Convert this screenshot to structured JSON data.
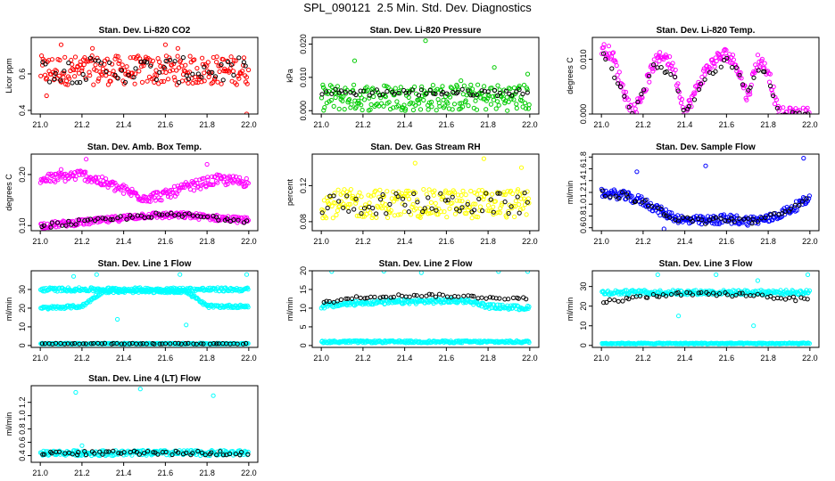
{
  "title": "SPL_090121  2.5 Min. Std. Dev. Diagnostics",
  "colors": {
    "red": "#ff0000",
    "green": "#00cc00",
    "magenta": "#ff00ff",
    "yellow": "#ffff00",
    "blue": "#0000ff",
    "cyan": "#00ffff",
    "black": "#000000"
  },
  "chart_data": [
    {
      "type": "scatter",
      "title": "Stan. Dev. Li-820 CO2",
      "ylabel": "Licor ppm",
      "xlim": [
        21.0,
        22.0
      ],
      "xticks": [
        21.0,
        21.2,
        21.4,
        21.6,
        21.8,
        22.0
      ],
      "ylim": [
        0.38,
        0.8
      ],
      "yticks": [
        "0.4",
        "0.6"
      ],
      "ytick_values": [
        0.4,
        0.6
      ],
      "color": "red",
      "series": [
        {
          "name": "main",
          "shape": "band",
          "trend_x": [
            21.0,
            21.5,
            22.0
          ],
          "trend_y": [
            0.62,
            0.62,
            0.62
          ],
          "spread": 0.08
        },
        {
          "name": "black",
          "shape": "band",
          "trend_x": [
            21.0,
            22.0
          ],
          "trend_y": [
            0.62,
            0.62
          ],
          "spread": 0.07
        }
      ],
      "outliers": [
        [
          21.1,
          0.76
        ],
        [
          21.25,
          0.74
        ],
        [
          21.6,
          0.76
        ],
        [
          21.66,
          0.74
        ],
        [
          21.99,
          0.38
        ],
        [
          21.03,
          0.48
        ]
      ]
    },
    {
      "type": "scatter",
      "title": "Stan. Dev. Li-820 Pressure",
      "ylabel": "kPa",
      "xlim": [
        21.0,
        22.0
      ],
      "xticks": [
        21.0,
        21.2,
        21.4,
        21.6,
        21.8,
        22.0
      ],
      "ylim": [
        -0.001,
        0.022
      ],
      "yticks": [
        "0.000",
        "0.010",
        "0.020"
      ],
      "ytick_values": [
        0.0,
        0.01,
        0.02
      ],
      "color": "green",
      "series": [
        {
          "name": "main",
          "shape": "band",
          "trend_x": [
            21.0,
            22.0
          ],
          "trend_y": [
            0.004,
            0.004
          ],
          "spread": 0.004
        },
        {
          "name": "black",
          "shape": "band",
          "trend_x": [
            21.0,
            22.0
          ],
          "trend_y": [
            0.0055,
            0.0055
          ],
          "spread": 0.001
        }
      ],
      "outliers": [
        [
          21.16,
          0.015
        ],
        [
          21.5,
          0.021
        ],
        [
          21.67,
          0.009
        ],
        [
          21.83,
          0.013
        ],
        [
          21.99,
          0.011
        ],
        [
          21.01,
          0.007
        ]
      ]
    },
    {
      "type": "scatter",
      "title": "Stan. Dev. Li-820 Temp.",
      "ylabel": "degrees C",
      "xlim": [
        21.0,
        22.0
      ],
      "xticks": [
        21.0,
        21.2,
        21.4,
        21.6,
        21.8,
        22.0
      ],
      "ylim": [
        0.0,
        0.014
      ],
      "yticks": [
        "0.000",
        "0.010"
      ],
      "ytick_values": [
        0.0,
        0.01
      ],
      "color": "magenta",
      "series": [
        {
          "name": "main",
          "shape": "band",
          "trend_x": [
            21.0,
            21.05,
            21.1,
            21.15,
            21.2,
            21.25,
            21.3,
            21.35,
            21.4,
            21.45,
            21.5,
            21.55,
            21.6,
            21.65,
            21.7,
            21.75,
            21.8,
            21.85,
            21.9,
            22.0
          ],
          "trend_y": [
            0.012,
            0.011,
            0.005,
            0.0,
            0.004,
            0.009,
            0.011,
            0.008,
            0.0,
            0.004,
            0.008,
            0.01,
            0.011,
            0.009,
            0.003,
            0.01,
            0.008,
            0.0,
            0.0,
            0.0
          ],
          "spread": 0.0012
        },
        {
          "name": "black",
          "shape": "band",
          "trend_x": [
            21.0,
            21.05,
            21.1,
            21.15,
            21.2,
            21.25,
            21.3,
            21.35,
            21.4,
            21.45,
            21.5,
            21.55,
            21.6,
            21.65,
            21.7,
            21.75,
            21.8,
            21.85,
            21.9,
            22.0
          ],
          "trend_y": [
            0.012,
            0.008,
            0.004,
            0.0,
            0.004,
            0.009,
            0.008,
            0.007,
            0.0,
            0.003,
            0.007,
            0.008,
            0.01,
            0.008,
            0.004,
            0.008,
            0.007,
            0.0,
            0.0,
            0.0
          ],
          "spread": 0.0004
        }
      ],
      "outliers": []
    },
    {
      "type": "scatter",
      "title": "Stan. Dev. Amb. Box Temp.",
      "ylabel": "degrees C",
      "xlim": [
        21.0,
        22.0
      ],
      "xticks": [
        21.0,
        21.2,
        21.4,
        21.6,
        21.8,
        22.0
      ],
      "ylim": [
        0.09,
        0.24
      ],
      "yticks": [
        "0.10",
        "0.20"
      ],
      "ytick_values": [
        0.1,
        0.2
      ],
      "color": "magenta",
      "series": [
        {
          "name": "upper",
          "shape": "band",
          "trend_x": [
            21.0,
            21.2,
            21.4,
            21.5,
            21.6,
            21.7,
            21.85,
            22.0
          ],
          "trend_y": [
            0.19,
            0.2,
            0.17,
            0.155,
            0.16,
            0.175,
            0.19,
            0.185
          ],
          "spread": 0.01
        },
        {
          "name": "lower",
          "shape": "band",
          "trend_x": [
            21.0,
            21.3,
            21.5,
            21.7,
            22.0
          ],
          "trend_y": [
            0.1,
            0.11,
            0.12,
            0.12,
            0.11
          ],
          "spread": 0.006
        },
        {
          "name": "black",
          "shape": "band",
          "trend_x": [
            21.0,
            21.3,
            21.5,
            21.7,
            22.0
          ],
          "trend_y": [
            0.1,
            0.11,
            0.12,
            0.12,
            0.11
          ],
          "spread": 0.005
        }
      ],
      "outliers": [
        [
          21.22,
          0.23
        ],
        [
          21.8,
          0.22
        ],
        [
          21.1,
          0.21
        ]
      ]
    },
    {
      "type": "scatter",
      "title": "Stan. Dev. Gas Stream RH",
      "ylabel": "percent",
      "xlim": [
        21.0,
        22.0
      ],
      "xticks": [
        21.0,
        21.2,
        21.4,
        21.6,
        21.8,
        22.0
      ],
      "ylim": [
        0.07,
        0.155
      ],
      "yticks": [
        "0.08",
        "0.12"
      ],
      "ytick_values": [
        0.08,
        0.12
      ],
      "color": "yellow",
      "series": [
        {
          "name": "main",
          "shape": "band",
          "trend_x": [
            21.0,
            22.0
          ],
          "trend_y": [
            0.1,
            0.1
          ],
          "spread": 0.016
        },
        {
          "name": "black",
          "shape": "band",
          "trend_x": [
            21.0,
            22.0
          ],
          "trend_y": [
            0.1,
            0.1
          ],
          "spread": 0.012
        }
      ],
      "outliers": [
        [
          21.78,
          0.15
        ],
        [
          21.45,
          0.145
        ],
        [
          21.96,
          0.14
        ]
      ]
    },
    {
      "type": "scatter",
      "title": "Stan. Dev. Sample Flow",
      "ylabel": "ml/min",
      "xlim": [
        21.0,
        22.0
      ],
      "xticks": [
        21.0,
        21.2,
        21.4,
        21.6,
        21.8,
        22.0
      ],
      "ylim": [
        0.55,
        1.85
      ],
      "yticks": [
        "0.6",
        "0.8",
        "1.0",
        "1.2",
        "1.4",
        "1.6",
        "1.8"
      ],
      "ytick_values": [
        0.6,
        0.8,
        1.0,
        1.2,
        1.4,
        1.6,
        1.8
      ],
      "color": "blue",
      "series": [
        {
          "name": "main",
          "shape": "band",
          "trend_x": [
            21.0,
            21.1,
            21.2,
            21.3,
            21.4,
            21.5,
            21.6,
            21.7,
            21.8,
            21.9,
            22.0
          ],
          "trend_y": [
            1.2,
            1.15,
            1.05,
            0.85,
            0.72,
            0.72,
            0.75,
            0.72,
            0.75,
            0.9,
            1.1
          ],
          "spread": 0.08
        },
        {
          "name": "black",
          "shape": "band",
          "trend_x": [
            21.0,
            21.1,
            21.2,
            21.3,
            21.4,
            21.5,
            21.6,
            21.7,
            21.8,
            21.9,
            22.0
          ],
          "trend_y": [
            1.2,
            1.15,
            1.05,
            0.85,
            0.72,
            0.72,
            0.75,
            0.72,
            0.75,
            0.9,
            1.1
          ],
          "spread": 0.06
        }
      ],
      "outliers": [
        [
          21.17,
          1.55
        ],
        [
          21.5,
          1.65
        ],
        [
          21.97,
          1.78
        ],
        [
          21.3,
          0.58
        ]
      ]
    },
    {
      "type": "scatter",
      "title": "Stan. Dev. Line 1 Flow",
      "ylabel": "ml/min",
      "xlim": [
        21.0,
        22.0
      ],
      "xticks": [
        21.0,
        21.2,
        21.4,
        21.6,
        21.8,
        22.0
      ],
      "ylim": [
        -1,
        40
      ],
      "yticks": [
        "0",
        "10",
        "20",
        "30"
      ],
      "ytick_values": [
        0,
        10,
        20,
        30
      ],
      "color": "cyan",
      "series": [
        {
          "name": "upper",
          "shape": "band",
          "trend_x": [
            21.0,
            22.0
          ],
          "trend_y": [
            30,
            30
          ],
          "spread": 1.0
        },
        {
          "name": "lower",
          "shape": "band",
          "trend_x": [
            21.0,
            21.2,
            21.3,
            21.7,
            21.8,
            22.0
          ],
          "trend_y": [
            20,
            21,
            29,
            29,
            21,
            21
          ],
          "spread": 0.8
        },
        {
          "name": "baseline",
          "shape": "band",
          "trend_x": [
            21.0,
            22.0
          ],
          "trend_y": [
            1,
            1
          ],
          "spread": 0.3
        },
        {
          "name": "black",
          "shape": "band",
          "trend_x": [
            21.0,
            22.0
          ],
          "trend_y": [
            1,
            1
          ],
          "spread": 0.2
        }
      ],
      "outliers": [
        [
          21.37,
          14
        ],
        [
          21.7,
          11
        ],
        [
          21.27,
          38
        ],
        [
          21.67,
          38
        ],
        [
          21.99,
          38
        ],
        [
          21.16,
          37
        ]
      ]
    },
    {
      "type": "scatter",
      "title": "Stan. Dev. Line 2 Flow",
      "ylabel": "ml/min",
      "xlim": [
        21.0,
        22.0
      ],
      "xticks": [
        21.0,
        21.2,
        21.4,
        21.6,
        21.8,
        22.0
      ],
      "ylim": [
        -0.5,
        20
      ],
      "yticks": [
        "0",
        "5",
        "10",
        "15",
        "20"
      ],
      "ytick_values": [
        0,
        5,
        10,
        15,
        20
      ],
      "color": "cyan",
      "series": [
        {
          "name": "main",
          "shape": "band",
          "trend_x": [
            21.0,
            21.2,
            21.7,
            21.8,
            22.0
          ],
          "trend_y": [
            10.5,
            11.5,
            12,
            10.5,
            10
          ],
          "spread": 0.6
        },
        {
          "name": "baseline",
          "shape": "band",
          "trend_x": [
            21.0,
            22.0
          ],
          "trend_y": [
            1,
            1
          ],
          "spread": 0.3
        },
        {
          "name": "black",
          "shape": "band",
          "trend_x": [
            21.0,
            21.2,
            21.5,
            22.0
          ],
          "trend_y": [
            11.5,
            13,
            13.5,
            12.5
          ],
          "spread": 0.4
        }
      ],
      "outliers": [
        [
          21.05,
          19.8
        ],
        [
          21.48,
          19.5
        ],
        [
          21.85,
          19.8
        ],
        [
          21.99,
          19.8
        ],
        [
          21.3,
          19.9
        ]
      ]
    },
    {
      "type": "scatter",
      "title": "Stan. Dev. Line 3 Flow",
      "ylabel": "ml/min",
      "xlim": [
        21.0,
        22.0
      ],
      "xticks": [
        21.0,
        21.2,
        21.4,
        21.6,
        21.8,
        22.0
      ],
      "ylim": [
        -1,
        38
      ],
      "yticks": [
        "0",
        "10",
        "20",
        "30"
      ],
      "ytick_values": [
        0,
        10,
        20,
        30
      ],
      "color": "cyan",
      "series": [
        {
          "name": "main",
          "shape": "band",
          "trend_x": [
            21.0,
            21.5,
            22.0
          ],
          "trend_y": [
            27,
            27,
            27
          ],
          "spread": 1.2
        },
        {
          "name": "baseline",
          "shape": "band",
          "trend_x": [
            21.0,
            22.0
          ],
          "trend_y": [
            1,
            1
          ],
          "spread": 0.3
        },
        {
          "name": "black",
          "shape": "band",
          "trend_x": [
            21.0,
            21.3,
            21.7,
            22.0
          ],
          "trend_y": [
            22,
            26,
            26,
            23
          ],
          "spread": 1.0
        }
      ],
      "outliers": [
        [
          21.37,
          15
        ],
        [
          21.73,
          10
        ],
        [
          21.27,
          36
        ],
        [
          21.55,
          36
        ],
        [
          21.99,
          36
        ],
        [
          21.75,
          33
        ]
      ]
    },
    {
      "type": "scatter",
      "title": "Stan. Dev. Line 4 (LT) Flow",
      "ylabel": "ml/min",
      "xlim": [
        21.0,
        22.0
      ],
      "xticks": [
        21.0,
        21.2,
        21.4,
        21.6,
        21.8,
        22.0
      ],
      "ylim": [
        0.3,
        1.45
      ],
      "yticks": [
        "0.4",
        "0.6",
        "0.8",
        "1.0",
        "1.2"
      ],
      "ytick_values": [
        0.4,
        0.6,
        0.8,
        1.0,
        1.2
      ],
      "color": "cyan",
      "series": [
        {
          "name": "main",
          "shape": "band",
          "trend_x": [
            21.0,
            22.0
          ],
          "trend_y": [
            0.44,
            0.44
          ],
          "spread": 0.04
        },
        {
          "name": "black",
          "shape": "band",
          "trend_x": [
            21.0,
            22.0
          ],
          "trend_y": [
            0.44,
            0.44
          ],
          "spread": 0.03
        }
      ],
      "outliers": [
        [
          21.17,
          1.35
        ],
        [
          21.48,
          1.4
        ],
        [
          21.83,
          1.3
        ],
        [
          21.2,
          0.55
        ]
      ]
    }
  ]
}
